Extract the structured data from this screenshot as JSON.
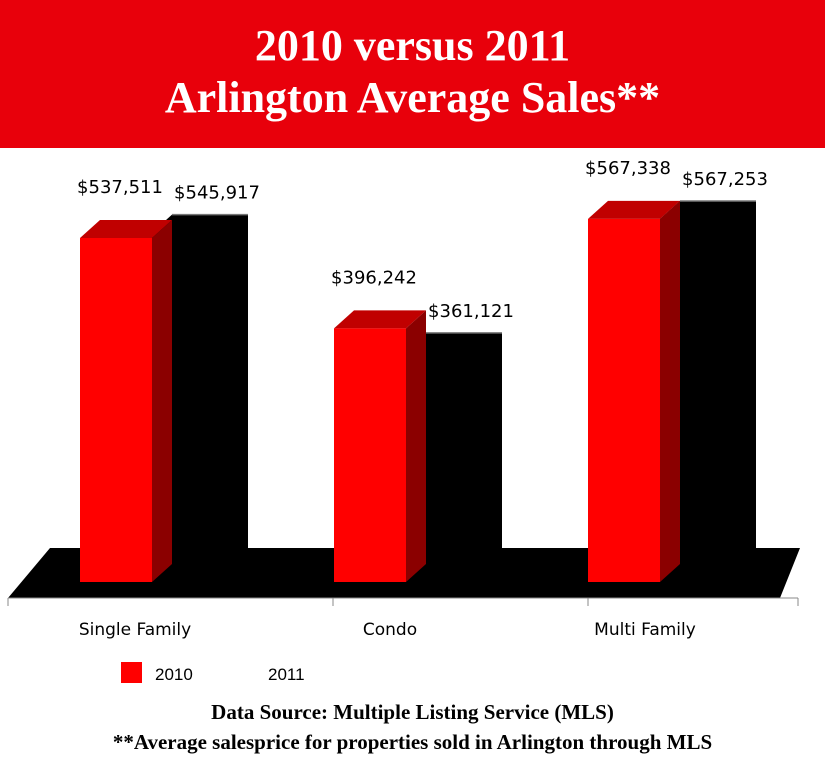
{
  "chart_data": {
    "type": "bar",
    "title": [
      "2010 versus 2011",
      "Arlington Average Sales**"
    ],
    "categories": [
      "Single Family",
      "Condo",
      "Multi Family"
    ],
    "series": [
      {
        "name": "2010",
        "values": [
          537511,
          396242,
          567338
        ],
        "labels": [
          "$537,511",
          "$396,242",
          "$567,338"
        ],
        "color": "#ff0000"
      },
      {
        "name": "2011",
        "values": [
          545917,
          361121,
          567253
        ],
        "labels": [
          "$545,917",
          "$361,121",
          "$567,253"
        ],
        "color": "#000000"
      }
    ],
    "xlabel": "",
    "ylabel": "",
    "ylim": [
      0,
      600000
    ],
    "grid": false,
    "legend": "bottom-left"
  },
  "footer": {
    "source": "Data Source:  Multiple Listing Service (MLS)",
    "note": "**Average salesprice for properties sold in Arlington through MLS"
  }
}
